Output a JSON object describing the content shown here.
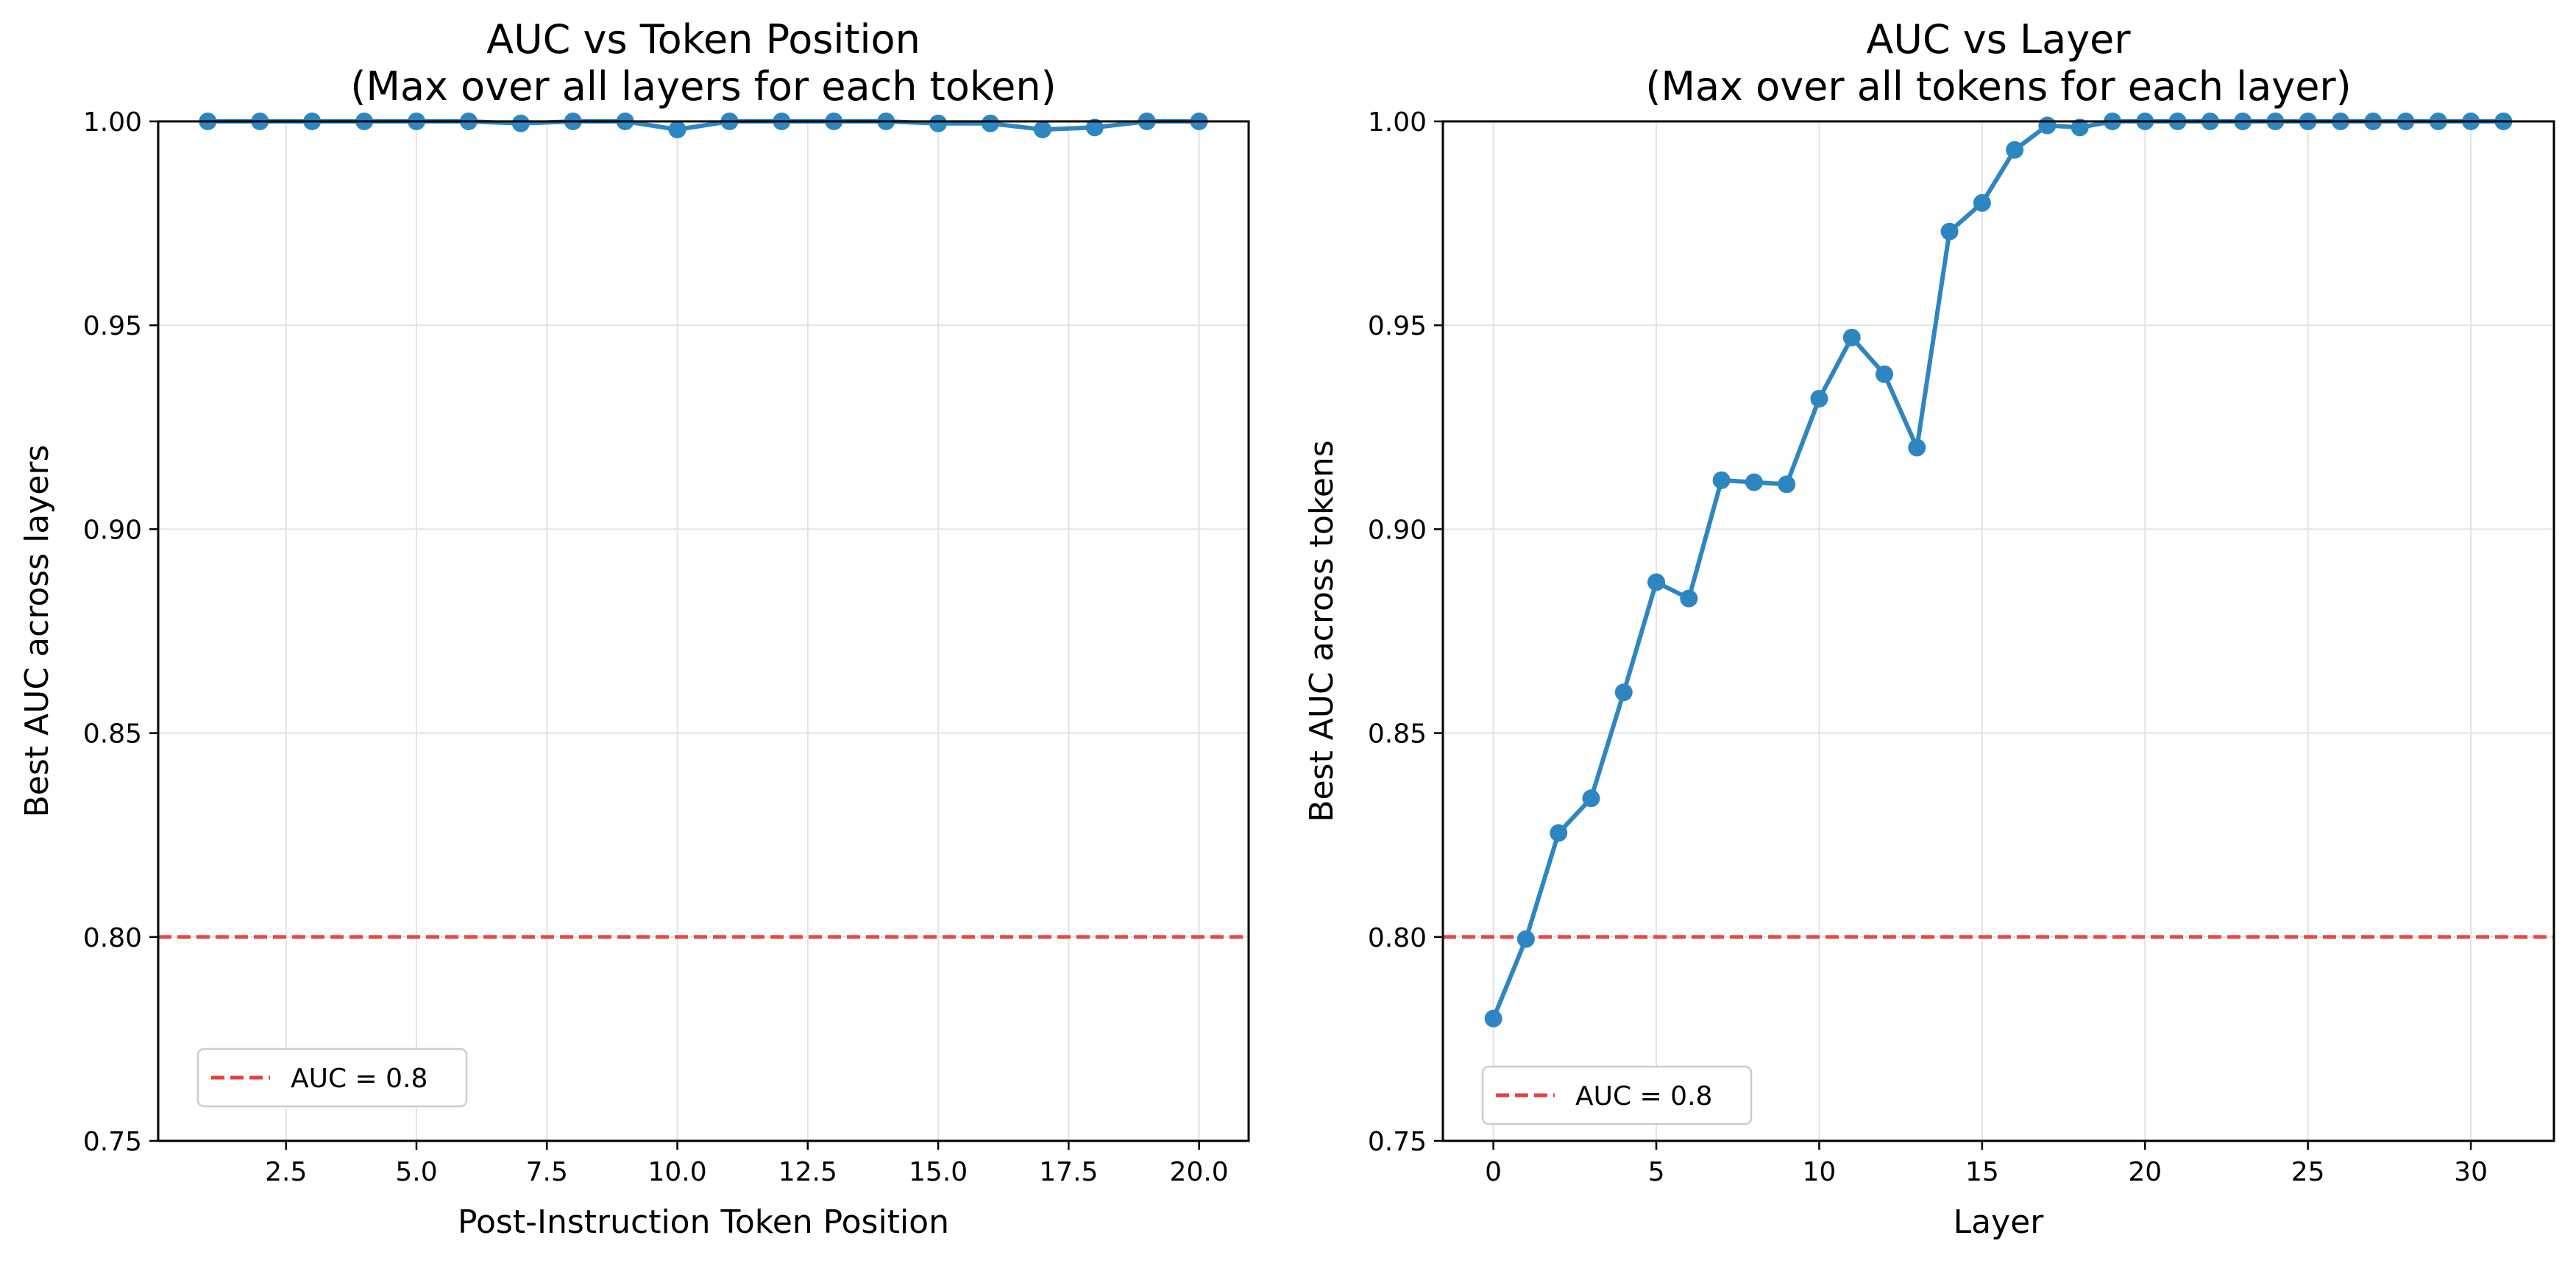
{
  "chart_data": [
    {
      "type": "line",
      "title": "AUC vs Token Position",
      "subtitle": "(Max over all layers for each token)",
      "xlabel": "Post-Instruction Token Position",
      "ylabel": "Best AUC across layers",
      "xlim": [
        0.05,
        20.95
      ],
      "ylim": [
        0.75,
        1.0
      ],
      "xticks": [
        2.5,
        5.0,
        7.5,
        10.0,
        12.5,
        15.0,
        17.5,
        20.0
      ],
      "xtick_labels": [
        "2.5",
        "5.0",
        "7.5",
        "10.0",
        "12.5",
        "15.0",
        "17.5",
        "20.0"
      ],
      "yticks": [
        0.75,
        0.8,
        0.85,
        0.9,
        0.95,
        1.0
      ],
      "ytick_labels": [
        "0.75",
        "0.80",
        "0.85",
        "0.90",
        "0.95",
        "1.00"
      ],
      "grid": true,
      "legend": {
        "position": "lower-left",
        "entries": [
          "AUC = 0.8"
        ]
      },
      "reference_line": {
        "y": 0.8,
        "style": "dashed",
        "color": "#e8403a",
        "label": "AUC = 0.8"
      },
      "series": [
        {
          "color": "#2e86c1",
          "x": [
            1,
            2,
            3,
            4,
            5,
            6,
            7,
            8,
            9,
            10,
            11,
            12,
            13,
            14,
            15,
            16,
            17,
            18,
            19,
            20
          ],
          "y": [
            1.0,
            1.0,
            1.0,
            1.0,
            1.0,
            1.0,
            0.9995,
            1.0,
            1.0,
            0.998,
            1.0,
            1.0,
            1.0,
            1.0,
            0.9995,
            0.9995,
            0.998,
            0.9985,
            1.0,
            1.0
          ]
        }
      ]
    },
    {
      "type": "line",
      "title": "AUC vs Layer",
      "subtitle": "(Max over all tokens for each layer)",
      "xlabel": "Layer",
      "ylabel": "Best AUC across tokens",
      "xlim": [
        -1.55,
        32.55
      ],
      "ylim": [
        0.75,
        1.0
      ],
      "xticks": [
        0,
        5,
        10,
        15,
        20,
        25,
        30
      ],
      "xtick_labels": [
        "0",
        "5",
        "10",
        "15",
        "20",
        "25",
        "30"
      ],
      "yticks": [
        0.75,
        0.8,
        0.85,
        0.9,
        0.95,
        1.0
      ],
      "ytick_labels": [
        "0.75",
        "0.80",
        "0.85",
        "0.90",
        "0.95",
        "1.00"
      ],
      "grid": true,
      "legend": {
        "position": "lower-left",
        "entries": [
          "AUC = 0.8"
        ]
      },
      "reference_line": {
        "y": 0.8,
        "style": "dashed",
        "color": "#e8403a",
        "label": "AUC = 0.8"
      },
      "series": [
        {
          "color": "#2e86c1",
          "x": [
            0,
            1,
            2,
            3,
            4,
            5,
            6,
            7,
            8,
            9,
            10,
            11,
            12,
            13,
            14,
            15,
            16,
            17,
            18,
            19,
            20,
            21,
            22,
            23,
            24,
            25,
            26,
            27,
            28,
            29,
            30,
            31
          ],
          "y": [
            0.78,
            0.7995,
            0.8255,
            0.834,
            0.86,
            0.887,
            0.883,
            0.912,
            0.9115,
            0.911,
            0.932,
            0.947,
            0.938,
            0.92,
            0.973,
            0.98,
            0.993,
            0.999,
            0.9985,
            1.0,
            1.0,
            1.0,
            1.0,
            1.0,
            1.0,
            1.0,
            1.0,
            1.0,
            1.0,
            1.0,
            1.0,
            1.0
          ]
        }
      ]
    }
  ]
}
